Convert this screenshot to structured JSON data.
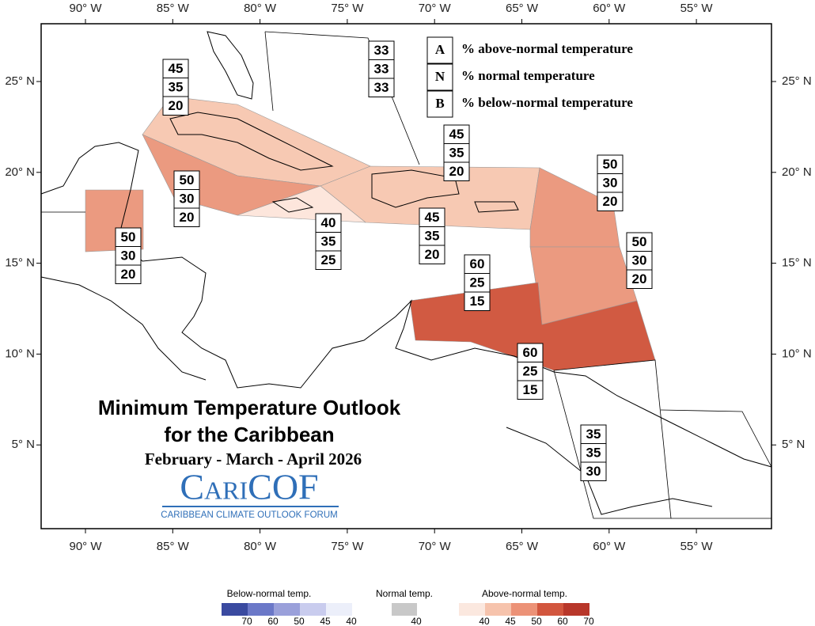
{
  "title": {
    "line1": "Minimum Temperature Outlook",
    "line2": "for the Caribbean",
    "period": "February - March - April 2026"
  },
  "logo": {
    "name": "CariCOF",
    "subtitle": "CARIBBEAN CLIMATE OUTLOOK FORUM"
  },
  "key": [
    {
      "letter": "A",
      "text": "% above-normal temperature"
    },
    {
      "letter": "N",
      "text": "% normal temperature"
    },
    {
      "letter": "B",
      "text": "% below-normal temperature"
    }
  ],
  "axes": {
    "longitudes": [
      "90° W",
      "85° W",
      "80° W",
      "75° W",
      "70° W",
      "65° W",
      "60° W",
      "55° W"
    ],
    "latitudes": [
      "25° N",
      "20° N",
      "15° N",
      "10° N",
      "5° N"
    ]
  },
  "regions": [
    {
      "above": 45,
      "normal": 35,
      "below": 20
    },
    {
      "above": 33,
      "normal": 33,
      "below": 33
    },
    {
      "above": 45,
      "normal": 35,
      "below": 20
    },
    {
      "above": 50,
      "normal": 30,
      "below": 20
    },
    {
      "above": 50,
      "normal": 30,
      "below": 20
    },
    {
      "above": 40,
      "normal": 35,
      "below": 25
    },
    {
      "above": 45,
      "normal": 35,
      "below": 20
    },
    {
      "above": 50,
      "normal": 30,
      "below": 20
    },
    {
      "above": 50,
      "normal": 30,
      "below": 20
    },
    {
      "above": 60,
      "normal": 25,
      "below": 15
    },
    {
      "above": 60,
      "normal": 25,
      "below": 15
    },
    {
      "above": 35,
      "normal": 35,
      "below": 30
    }
  ],
  "legend": {
    "below": {
      "title": "Below-normal temp.",
      "ticks": [
        70,
        60,
        50,
        45,
        40
      ]
    },
    "normal": {
      "title": "Normal temp.",
      "ticks": [
        40
      ]
    },
    "above": {
      "title": "Above-normal temp.",
      "ticks": [
        40,
        45,
        50,
        60,
        70
      ]
    }
  }
}
